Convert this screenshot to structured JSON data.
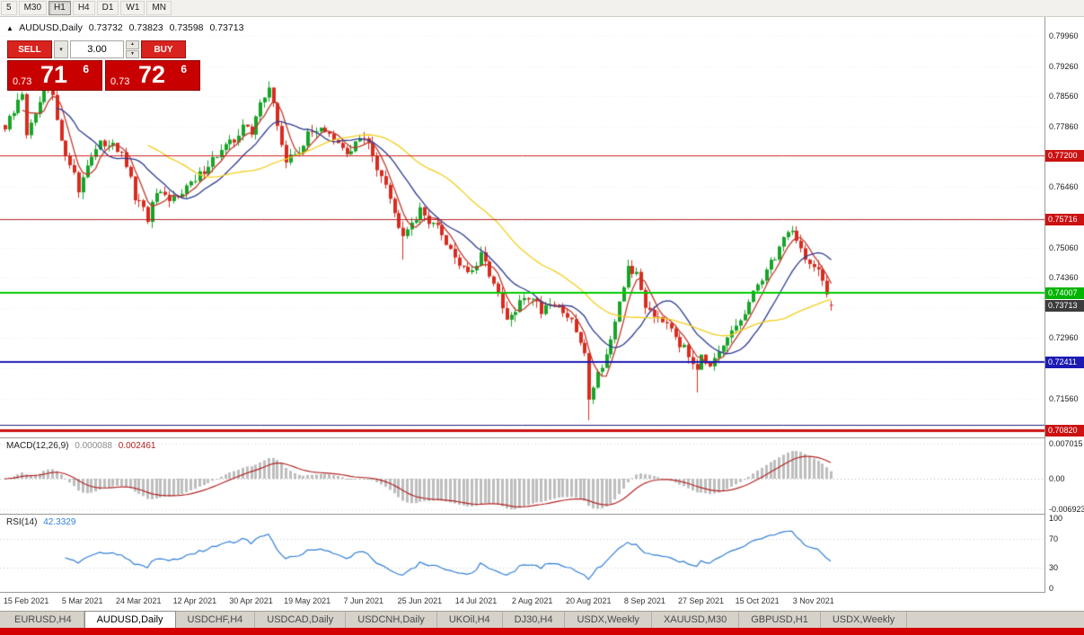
{
  "timeframe_toolbar": {
    "buttons": [
      "5",
      "M30",
      "H1",
      "H4",
      "D1",
      "W1",
      "MN"
    ],
    "active": "H1"
  },
  "chart_header": {
    "collapse_icon": "▲",
    "symbol": "AUDUSD,Daily",
    "open": "0.73732",
    "high": "0.73823",
    "low": "0.73598",
    "close": "0.73713"
  },
  "trade_panel": {
    "sell_label": "SELL",
    "buy_label": "BUY",
    "volume": "3.00",
    "bid": {
      "prefix": "0.73",
      "big": "71",
      "sup": "6"
    },
    "ask": {
      "prefix": "0.73",
      "big": "72",
      "sup": "6"
    }
  },
  "macd_panel": {
    "title": "MACD(12,26,9)",
    "value_main": "0.000088",
    "value_signal": "0.002461",
    "axis_labels": [
      "0.007015",
      "0.00",
      "-0.006923"
    ]
  },
  "rsi_panel": {
    "title": "RSI(14)",
    "value": "42.3329",
    "axis_labels": [
      "100",
      "70",
      "30",
      "0"
    ]
  },
  "tabs": {
    "active_index": 1,
    "items": [
      "EURUSD,H4",
      "AUDUSD,Daily",
      "USDCHF,H4",
      "USDCAD,Daily",
      "USDCNH,Daily",
      "UKOil,H4",
      "DJ30,H4",
      "USDX,Weekly",
      "XAUUSD,M30",
      "GBPUSD,H1",
      "USDX,Weekly"
    ]
  },
  "chart_data": {
    "type": "candlestick",
    "symbol": "AUDUSD",
    "timeframe": "Daily",
    "n_candles": 192,
    "price_top": 0.804,
    "price_bottom": 0.7066,
    "ohlc_current": {
      "open": 0.73732,
      "high": 0.73823,
      "low": 0.73598,
      "close": 0.73713
    },
    "colors": {
      "up": "#18a428",
      "down": "#d92b1f"
    },
    "anchors": [
      [
        0,
        0.778
      ],
      [
        2,
        0.7818
      ],
      [
        4,
        0.7866
      ],
      [
        5,
        0.7772
      ],
      [
        7,
        0.7804
      ],
      [
        9,
        0.788
      ],
      [
        11,
        0.7852
      ],
      [
        13,
        0.7744
      ],
      [
        15,
        0.7708
      ],
      [
        17,
        0.7638
      ],
      [
        19,
        0.7704
      ],
      [
        22,
        0.7742
      ],
      [
        25,
        0.7754
      ],
      [
        28,
        0.7696
      ],
      [
        30,
        0.7622
      ],
      [
        33,
        0.7574
      ],
      [
        35,
        0.763
      ],
      [
        38,
        0.761
      ],
      [
        41,
        0.7642
      ],
      [
        44,
        0.7658
      ],
      [
        47,
        0.7702
      ],
      [
        50,
        0.773
      ],
      [
        53,
        0.7754
      ],
      [
        55,
        0.7794
      ],
      [
        57,
        0.7764
      ],
      [
        59,
        0.785
      ],
      [
        61,
        0.7874
      ],
      [
        63,
        0.779
      ],
      [
        65,
        0.7704
      ],
      [
        68,
        0.7734
      ],
      [
        70,
        0.7764
      ],
      [
        73,
        0.779
      ],
      [
        76,
        0.775
      ],
      [
        79,
        0.7724
      ],
      [
        82,
        0.776
      ],
      [
        84,
        0.7744
      ],
      [
        86,
        0.7696
      ],
      [
        88,
        0.7662
      ],
      [
        90,
        0.7582
      ],
      [
        92,
        0.7544
      ],
      [
        94,
        0.7568
      ],
      [
        96,
        0.7588
      ],
      [
        99,
        0.7564
      ],
      [
        102,
        0.752
      ],
      [
        105,
        0.747
      ],
      [
        108,
        0.7444
      ],
      [
        110,
        0.7484
      ],
      [
        112,
        0.745
      ],
      [
        114,
        0.739
      ],
      [
        116,
        0.7334
      ],
      [
        118,
        0.7358
      ],
      [
        120,
        0.739
      ],
      [
        122,
        0.7394
      ],
      [
        124,
        0.736
      ],
      [
        126,
        0.7384
      ],
      [
        128,
        0.737
      ],
      [
        130,
        0.7348
      ],
      [
        132,
        0.7312
      ],
      [
        134,
        0.7254
      ],
      [
        135,
        0.7164
      ],
      [
        137,
        0.7214
      ],
      [
        139,
        0.726
      ],
      [
        141,
        0.7324
      ],
      [
        143,
        0.7414
      ],
      [
        144,
        0.7464
      ],
      [
        146,
        0.744
      ],
      [
        148,
        0.7374
      ],
      [
        150,
        0.7354
      ],
      [
        152,
        0.7344
      ],
      [
        154,
        0.7328
      ],
      [
        156,
        0.7284
      ],
      [
        158,
        0.7254
      ],
      [
        160,
        0.7234
      ],
      [
        161,
        0.7264
      ],
      [
        163,
        0.7224
      ],
      [
        165,
        0.7254
      ],
      [
        167,
        0.7294
      ],
      [
        169,
        0.7324
      ],
      [
        171,
        0.7354
      ],
      [
        173,
        0.7394
      ],
      [
        174,
        0.7424
      ],
      [
        176,
        0.7454
      ],
      [
        178,
        0.7486
      ],
      [
        180,
        0.753
      ],
      [
        182,
        0.7552
      ],
      [
        184,
        0.75
      ],
      [
        186,
        0.7468
      ],
      [
        188,
        0.7448
      ],
      [
        189,
        0.7418
      ],
      [
        191,
        0.73713
      ]
    ],
    "extremes": [
      {
        "i": 9,
        "high": 0.7895
      },
      {
        "i": 17,
        "low": 0.7621
      },
      {
        "i": 61,
        "high": 0.7891
      },
      {
        "i": 92,
        "low": 0.7478
      },
      {
        "i": 135,
        "low": 0.7106
      },
      {
        "i": 144,
        "high": 0.7478
      },
      {
        "i": 160,
        "low": 0.717
      },
      {
        "i": 182,
        "high": 0.7556
      }
    ],
    "grid_prices": [
      0.7996,
      0.7926,
      0.7856,
      0.7786,
      0.7716,
      0.7646,
      0.7576,
      0.7506,
      0.7436,
      0.7366,
      0.7296,
      0.7226,
      0.7156,
      0.7086
    ],
    "axis_labels": [
      {
        "price": 0.7996,
        "label": "0.79960"
      },
      {
        "price": 0.7926,
        "label": "0.79260"
      },
      {
        "price": 0.7856,
        "label": "0.78560"
      },
      {
        "price": 0.7786,
        "label": "0.77860"
      },
      {
        "price": 0.7646,
        "label": "0.76460"
      },
      {
        "price": 0.7506,
        "label": "0.75060"
      },
      {
        "price": 0.7436,
        "label": "0.74360"
      },
      {
        "price": 0.7296,
        "label": "0.72960"
      },
      {
        "price": 0.7156,
        "label": "0.71560"
      }
    ],
    "h_lines": [
      {
        "price": 0.772,
        "color": "#cc2222",
        "width": 1,
        "badge": "0.77200",
        "badge_bg": "#cc1111"
      },
      {
        "price": 0.75716,
        "color": "#b22222",
        "width": 1,
        "badge": "0.75716",
        "badge_bg": "#cc1111"
      },
      {
        "price": 0.74007,
        "color": "#00cc00",
        "width": 2,
        "badge": "0.74007",
        "badge_bg": "#00b400"
      },
      {
        "price": 0.72411,
        "color": "#1b1bb4",
        "width": 2,
        "badge": "0.72411",
        "badge_bg": "#1b1bb4"
      },
      {
        "price": 0.7095,
        "color": "#23237a",
        "width": 1
      },
      {
        "price": 0.7082,
        "color": "#cc1111",
        "width": 3,
        "badge": "0.70820",
        "badge_bg": "#cc1111"
      }
    ],
    "current_price_badge": {
      "price": 0.73713,
      "label": "0.73713",
      "bg": "#3c3c3c"
    },
    "moving_averages": [
      {
        "period": 5,
        "color": "#c0392b"
      },
      {
        "period": 13,
        "color": "#2b3990"
      },
      {
        "period": 34,
        "color": "#f2ce1b"
      }
    ],
    "macd": {
      "fast": 12,
      "slow": 26,
      "signal_period": 9,
      "histogram_color": "#bdbdbd",
      "signal_color": "#b22222"
    },
    "rsi": {
      "period": 14,
      "color": "#2f7ed8",
      "levels": [
        70,
        30
      ]
    },
    "dates": [
      [
        5,
        "15 Feb 2021"
      ],
      [
        18,
        "5 Mar 2021"
      ],
      [
        31,
        "24 Mar 2021"
      ],
      [
        44,
        "12 Apr 2021"
      ],
      [
        57,
        "30 Apr 2021"
      ],
      [
        70,
        "19 May 2021"
      ],
      [
        83,
        "7 Jun 2021"
      ],
      [
        96,
        "25 Jun 2021"
      ],
      [
        109,
        "14 Jul 2021"
      ],
      [
        122,
        "2 Aug 2021"
      ],
      [
        135,
        "20 Aug 2021"
      ],
      [
        148,
        "8 Sep 2021"
      ],
      [
        161,
        "27 Sep 2021"
      ],
      [
        174,
        "15 Oct 2021"
      ],
      [
        187,
        "3 Nov 2021"
      ]
    ]
  }
}
